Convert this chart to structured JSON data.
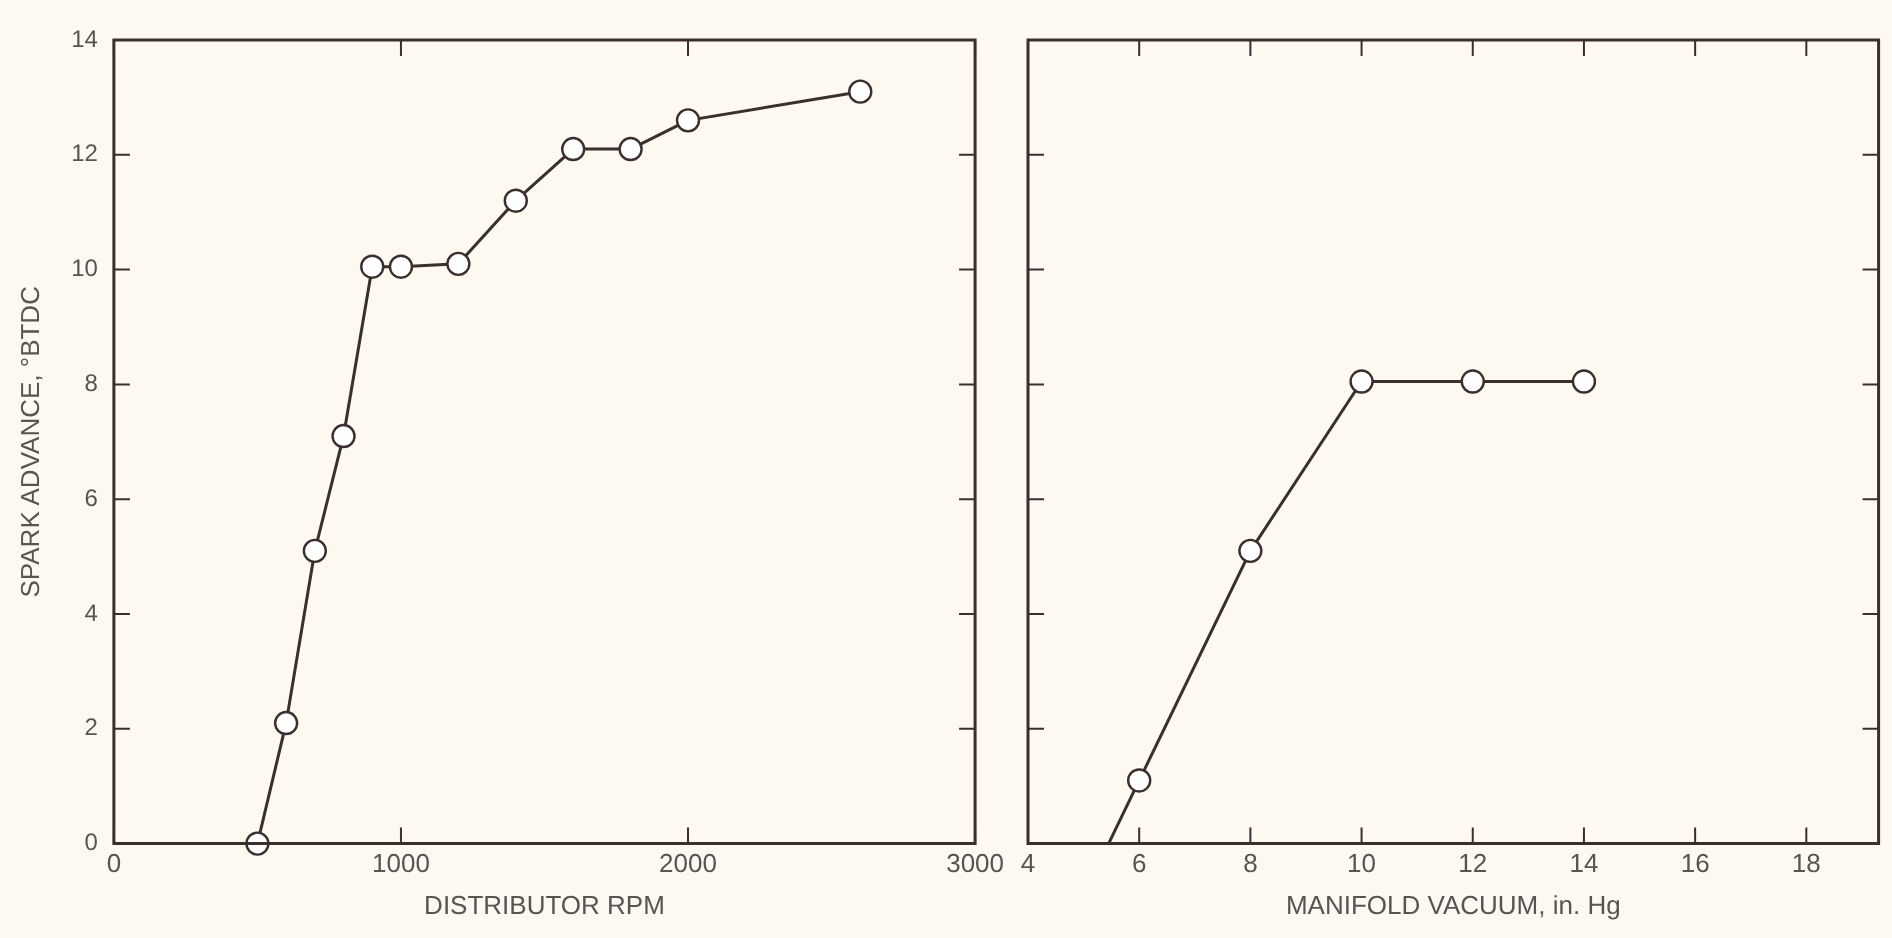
{
  "chart_data": [
    {
      "type": "line",
      "xlabel": "DISTRIBUTOR RPM",
      "ylabel": "SPARK ADVANCE, °BTDC",
      "xlim": [
        0,
        3000
      ],
      "xticks": [
        0,
        1000,
        2000,
        3000
      ],
      "ylim": [
        0,
        14
      ],
      "yticks": [
        0,
        2,
        4,
        6,
        8,
        10,
        12,
        14
      ],
      "grid": false,
      "marker": "circle",
      "series": [
        {
          "color": "#3a2e2e",
          "x": [
            500,
            600,
            700,
            800,
            900,
            1000,
            1200,
            1400,
            1600,
            1800,
            2000,
            2600
          ],
          "values": [
            0,
            2.1,
            5.1,
            7.1,
            10.05,
            10.05,
            10.1,
            11.2,
            12.1,
            12.1,
            12.6,
            13.1
          ]
        }
      ]
    },
    {
      "type": "line",
      "xlabel": "MANIFOLD VACUUM, in. Hg",
      "xlim": [
        4,
        19.3
      ],
      "xticks": [
        4,
        6,
        8,
        10,
        12,
        14,
        16,
        18
      ],
      "ylim": [
        0,
        14
      ],
      "yticks": [
        0,
        2,
        4,
        6,
        8,
        10,
        12,
        14
      ],
      "tick_labels": "x",
      "grid": false,
      "marker": "circle",
      "series": [
        {
          "color": "#3a2e2e",
          "x": [
            6,
            8,
            10,
            12,
            14
          ],
          "values": [
            1.1,
            5.1,
            8.05,
            8.05,
            8.05
          ]
        },
        {
          "color": "#3a2e2e",
          "marker": "none",
          "x": [
            5.45,
            6
          ],
          "values": [
            0,
            1.1
          ]
        }
      ]
    }
  ]
}
